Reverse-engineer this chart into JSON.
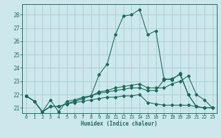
{
  "xlabel": "Humidex (Indice chaleur)",
  "ylabel": "",
  "bg_color": "#cce8ec",
  "grid_color": "#aacfd4",
  "line_color": "#1a6b5a",
  "xlim": [
    -0.5,
    23.5
  ],
  "ylim": [
    20.6,
    28.8
  ],
  "yticks": [
    21,
    22,
    23,
    24,
    25,
    26,
    27,
    28
  ],
  "xticks": [
    0,
    1,
    2,
    3,
    4,
    5,
    6,
    7,
    8,
    9,
    10,
    11,
    12,
    13,
    14,
    15,
    16,
    17,
    18,
    19,
    20,
    21,
    22,
    23
  ],
  "series": [
    [
      21.9,
      21.5,
      20.7,
      21.6,
      20.7,
      21.5,
      21.6,
      21.8,
      21.9,
      23.5,
      24.3,
      26.5,
      27.9,
      28.0,
      28.4,
      26.5,
      26.8,
      23.2,
      23.1,
      23.6,
      22.0,
      21.1,
      21.0,
      21.0
    ],
    [
      21.9,
      21.5,
      20.7,
      21.1,
      21.1,
      21.3,
      21.4,
      21.5,
      21.6,
      21.7,
      21.8,
      21.8,
      21.9,
      21.9,
      22.0,
      21.4,
      21.3,
      21.2,
      21.2,
      21.2,
      21.2,
      21.1,
      21.0,
      21.0
    ],
    [
      21.9,
      21.5,
      20.7,
      21.1,
      21.1,
      21.3,
      21.5,
      21.7,
      21.9,
      22.2,
      22.3,
      22.5,
      22.6,
      22.7,
      22.8,
      22.5,
      22.5,
      22.5,
      22.8,
      23.0,
      23.4,
      22.0,
      21.6,
      21.0
    ],
    [
      21.9,
      21.5,
      20.7,
      21.1,
      21.1,
      21.3,
      21.5,
      21.7,
      21.9,
      22.1,
      22.2,
      22.3,
      22.4,
      22.5,
      22.5,
      22.3,
      22.3,
      23.1,
      23.2,
      23.5,
      22.0,
      21.1,
      21.0,
      21.0
    ]
  ]
}
